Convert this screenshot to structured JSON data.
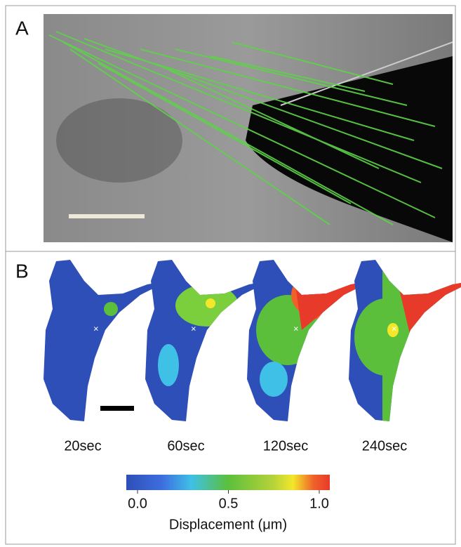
{
  "panels": {
    "a": {
      "label": "A"
    },
    "b": {
      "label": "B",
      "timepoints": [
        "20sec",
        "60sec",
        "120sec",
        "240sec"
      ]
    }
  },
  "colorbar": {
    "lim": [
      0,
      1
    ],
    "ticks": [
      {
        "value": 0,
        "label": "0.0"
      },
      {
        "value": 0.5,
        "label": "0.5"
      },
      {
        "value": 1,
        "label": "1.0"
      }
    ],
    "label": "Displacement (μm)"
  }
}
